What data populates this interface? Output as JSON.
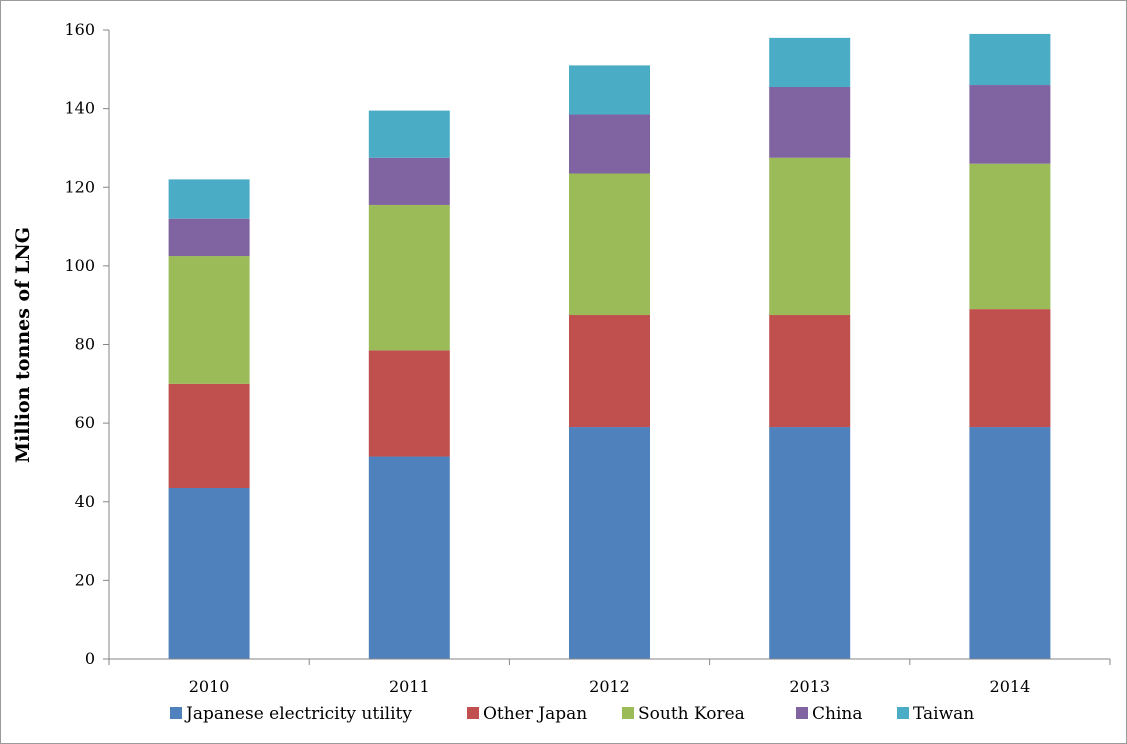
{
  "chart_data": {
    "type": "bar",
    "stacked": true,
    "title": "",
    "xlabel": "",
    "ylabel": "Million tonnes of LNG",
    "ylim": [
      0,
      160
    ],
    "yticks": [
      0,
      20,
      40,
      60,
      80,
      100,
      120,
      140,
      160
    ],
    "grid": false,
    "legend_position": "bottom",
    "categories": [
      "2010",
      "2011",
      "2012",
      "2013",
      "2014"
    ],
    "series": [
      {
        "name": "Japanese electricity utility",
        "color": "#4F81BD",
        "values": [
          43.5,
          51.5,
          59,
          59,
          59
        ]
      },
      {
        "name": "Other Japan",
        "color": "#C0504D",
        "values": [
          26.5,
          27,
          28.5,
          28.5,
          30
        ]
      },
      {
        "name": "South Korea",
        "color": "#9BBB59",
        "values": [
          32.5,
          37,
          36,
          40,
          37
        ]
      },
      {
        "name": "China",
        "color": "#8064A2",
        "values": [
          9.5,
          12,
          15,
          18,
          20
        ]
      },
      {
        "name": "Taiwan",
        "color": "#4BACC6",
        "values": [
          10,
          12,
          12.5,
          12.5,
          13
        ]
      }
    ]
  }
}
